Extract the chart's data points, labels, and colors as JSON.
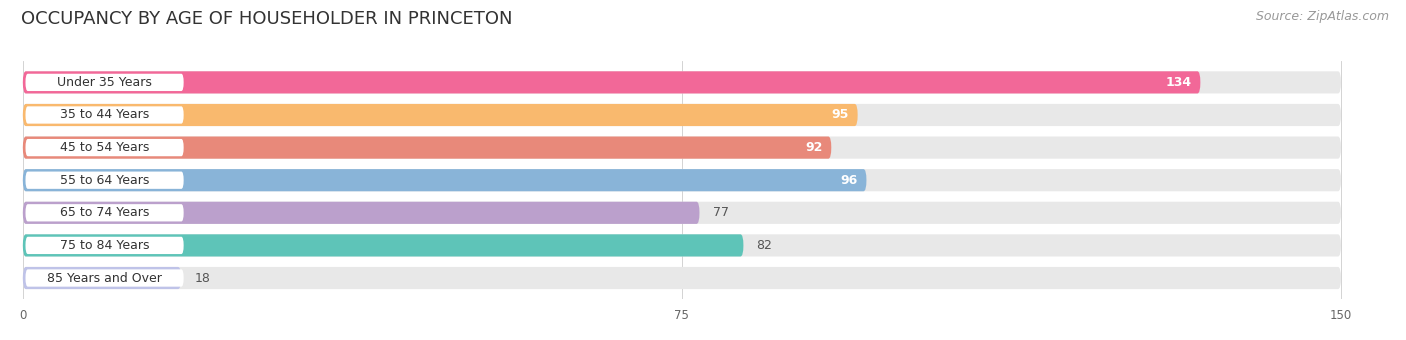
{
  "title": "OCCUPANCY BY AGE OF HOUSEHOLDER IN PRINCETON",
  "source": "Source: ZipAtlas.com",
  "categories": [
    "Under 35 Years",
    "35 to 44 Years",
    "45 to 54 Years",
    "55 to 64 Years",
    "65 to 74 Years",
    "75 to 84 Years",
    "85 Years and Over"
  ],
  "values": [
    134,
    95,
    92,
    96,
    77,
    82,
    18
  ],
  "bar_colors": [
    "#F26898",
    "#F9B96E",
    "#E8897A",
    "#89B4D8",
    "#BBA0CC",
    "#5EC4B8",
    "#BFC3E8"
  ],
  "xlim": [
    0,
    150
  ],
  "xticks": [
    0,
    75,
    150
  ],
  "background_color": "#ffffff",
  "bar_bg_color": "#eeeeee",
  "title_fontsize": 13,
  "source_fontsize": 9,
  "label_fontsize": 9,
  "value_fontsize": 9
}
